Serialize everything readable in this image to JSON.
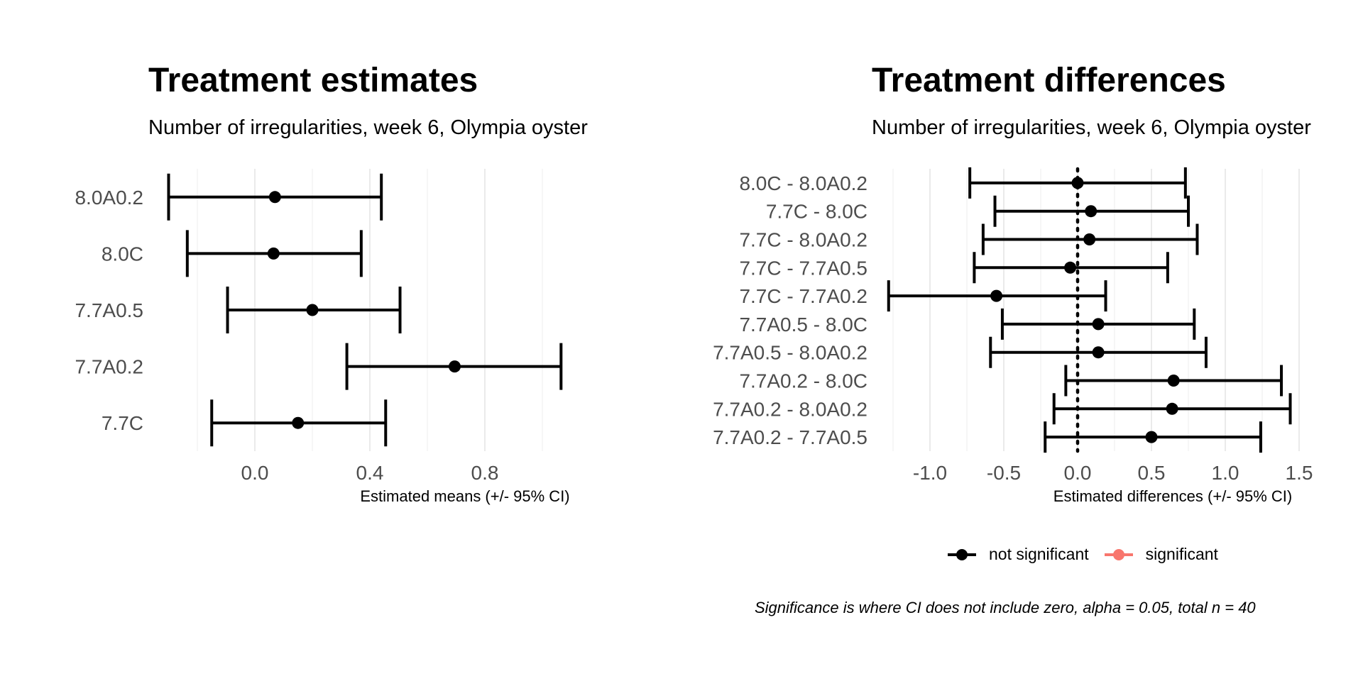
{
  "chart_data": [
    {
      "type": "scatter",
      "title": "Treatment estimates",
      "subtitle": "Number of irregularities, week 6, Olympia oyster",
      "xlabel": "Estimated means (+/- 95% CI)",
      "ylabel": "",
      "xlim": [
        -0.3,
        1.1
      ],
      "x_ticks": [
        "0.0",
        "0.4",
        "0.8"
      ],
      "x_tick_values": [
        0.0,
        0.4,
        0.8
      ],
      "grid": "vertical",
      "categories": [
        "8.0A0.2",
        "8.0C",
        "7.7A0.5",
        "7.7A0.2",
        "7.7C"
      ],
      "series": [
        {
          "estimate": [
            0.07,
            0.065,
            0.2,
            0.695,
            0.15
          ],
          "lower": [
            -0.3,
            -0.235,
            -0.095,
            0.32,
            -0.15
          ],
          "upper": [
            0.44,
            0.37,
            0.505,
            1.065,
            0.455
          ]
        }
      ]
    },
    {
      "type": "scatter",
      "title": "Treatment differences",
      "subtitle": "Number of irregularities, week 6, Olympia oyster",
      "xlabel": "Estimated differences (+/- 95% CI)",
      "ylabel": "",
      "xlim": [
        -1.3,
        1.55
      ],
      "x_ticks": [
        "-1.0",
        "-0.5",
        "0.0",
        "0.5",
        "1.0",
        "1.5"
      ],
      "x_tick_values": [
        -1.0,
        -0.5,
        0.0,
        0.5,
        1.0,
        1.5
      ],
      "grid": "vertical",
      "reference_line": 0,
      "categories": [
        "8.0C - 8.0A0.2",
        "7.7C - 8.0C",
        "7.7C - 8.0A0.2",
        "7.7C - 7.7A0.5",
        "7.7C - 7.7A0.2",
        "7.7A0.5 - 8.0C",
        "7.7A0.5 - 8.0A0.2",
        "7.7A0.2 - 8.0C",
        "7.7A0.2 - 8.0A0.2",
        "7.7A0.2 - 7.7A0.5"
      ],
      "series": [
        {
          "name": "not significant",
          "color": "#000000",
          "estimate": [
            0.0,
            0.09,
            0.08,
            -0.05,
            -0.55,
            0.14,
            0.14,
            0.65,
            0.64,
            0.5
          ],
          "lower": [
            -0.73,
            -0.56,
            -0.64,
            -0.7,
            -1.28,
            -0.51,
            -0.59,
            -0.08,
            -0.16,
            -0.22
          ],
          "upper": [
            0.73,
            0.75,
            0.81,
            0.61,
            0.19,
            0.79,
            0.87,
            1.38,
            1.44,
            1.24
          ]
        },
        {
          "name": "significant",
          "color": "#F8766D",
          "estimate": [],
          "lower": [],
          "upper": []
        }
      ],
      "legend_placement": "bottom",
      "caption": "Significance is where CI does not include zero, alpha = 0.05, total n = 40"
    }
  ]
}
